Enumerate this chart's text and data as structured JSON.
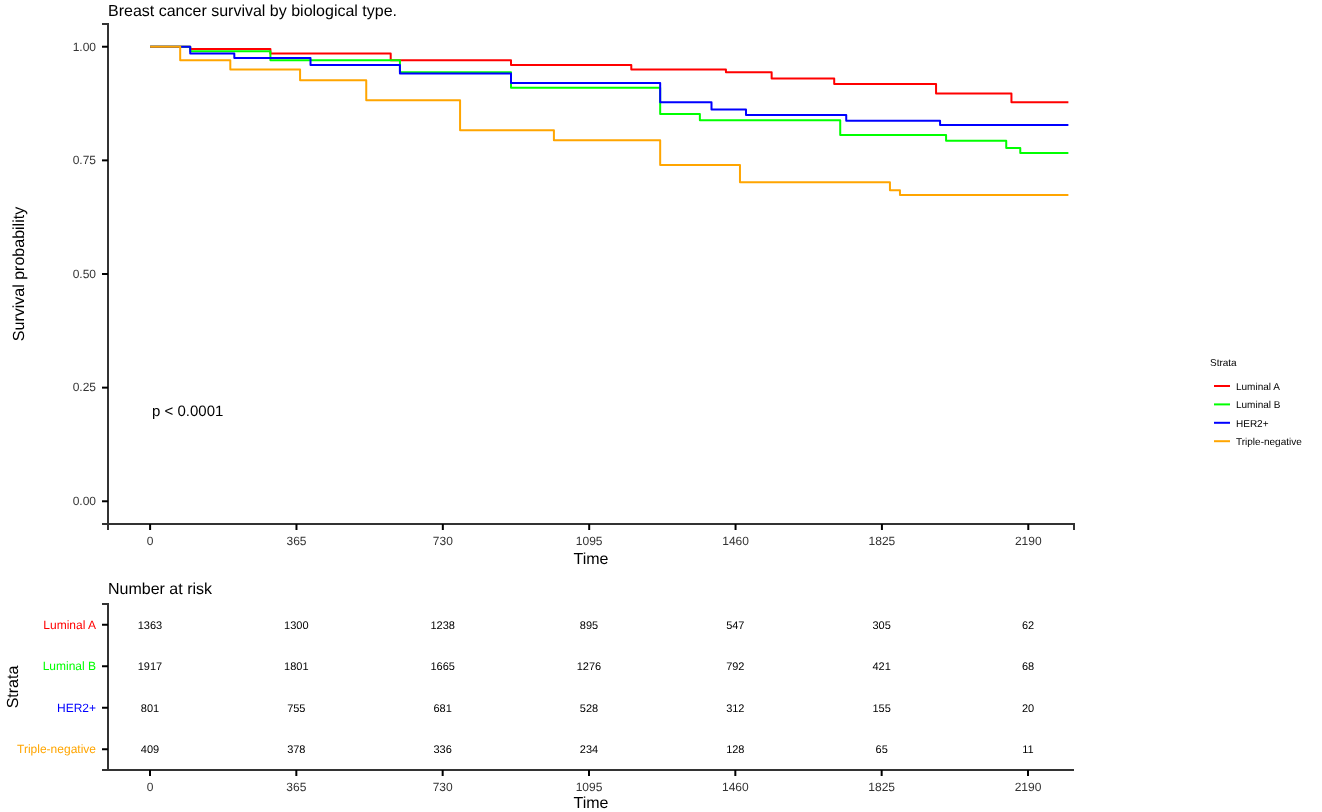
{
  "chart_data": [
    {
      "type": "step",
      "title": "Breast cancer survival by biological type.",
      "xlabel": "Time",
      "ylabel": "Survival probability",
      "legend_title": "Strata",
      "legend": "right",
      "grid": false,
      "xlim": [
        -105,
        2304
      ],
      "ylim": [
        -0.05,
        1.05
      ],
      "xticks": [
        0,
        365,
        730,
        1095,
        1460,
        1825,
        2190
      ],
      "yticks": [
        {
          "value": 0,
          "label": "0.00"
        },
        {
          "value": 0.25,
          "label": "0.25"
        },
        {
          "value": 0.5,
          "label": "0.50"
        },
        {
          "value": 0.75,
          "label": "0.75"
        },
        {
          "value": 1,
          "label": "1.00"
        }
      ],
      "annotations": [
        "p < 0.0001"
      ],
      "series": [
        {
          "name": "Luminal A",
          "color": "#ff0000",
          "x": [
            0,
            100,
            300,
            600,
            900,
            1200,
            1436,
            1550,
            1706,
            1960,
            2148,
            2290
          ],
          "values": [
            1,
            0.995,
            0.985,
            0.97,
            0.96,
            0.95,
            0.944,
            0.93,
            0.918,
            0.897,
            0.878,
            0.878
          ]
        },
        {
          "name": "Luminal B",
          "color": "#00ff00",
          "x": [
            0,
            100,
            300,
            623,
            900,
            1272,
            1371,
            1721,
            1985,
            2135,
            2170,
            2290
          ],
          "values": [
            1,
            0.99,
            0.97,
            0.944,
            0.91,
            0.852,
            0.838,
            0.806,
            0.793,
            0.777,
            0.766,
            0.766
          ]
        },
        {
          "name": "HER2+",
          "color": "#0000ff",
          "x": [
            0,
            100,
            210,
            400,
            623,
            900,
            1272,
            1400,
            1486,
            1736,
            1970,
            2290
          ],
          "values": [
            1,
            0.985,
            0.975,
            0.96,
            0.941,
            0.92,
            0.878,
            0.862,
            0.85,
            0.837,
            0.828,
            0.828
          ]
        },
        {
          "name": "Triple-negative",
          "color": "#ffa500",
          "x": [
            0,
            75,
            200,
            374,
            539,
            773,
            1007,
            1272,
            1471,
            1845,
            1870,
            2290
          ],
          "values": [
            1,
            0.97,
            0.95,
            0.926,
            0.882,
            0.816,
            0.794,
            0.74,
            0.702,
            0.684,
            0.674,
            0.674
          ]
        }
      ]
    },
    {
      "type": "heatmap",
      "title": "Number at risk",
      "xlabel": "Time",
      "ylabel": "Strata",
      "data_labels": true,
      "categories": [
        "0",
        "365",
        "730",
        "1095",
        "1460",
        "1825",
        "2190"
      ],
      "y_categories": [
        "Luminal A",
        "Luminal B",
        "HER2+",
        "Triple-negative"
      ],
      "cells": [
        [
          1363,
          1300,
          1238,
          895,
          547,
          305,
          62
        ],
        [
          1917,
          1801,
          1665,
          1276,
          792,
          421,
          68
        ],
        [
          801,
          755,
          681,
          528,
          312,
          155,
          20
        ],
        [
          409,
          378,
          336,
          234,
          128,
          65,
          11
        ]
      ]
    }
  ]
}
